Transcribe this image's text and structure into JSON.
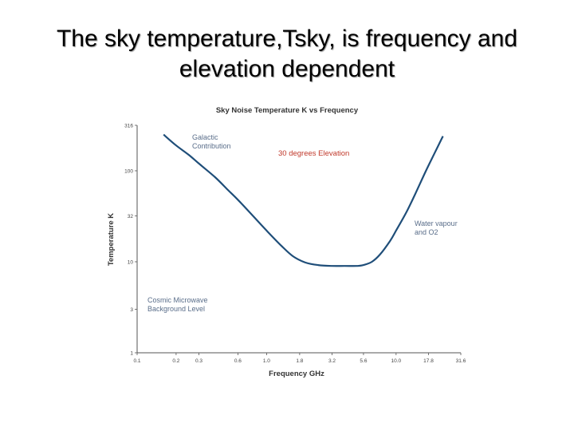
{
  "slide": {
    "title_line1": "The sky temperature,Tsky, is frequency and",
    "title_line2": "elevation dependent"
  },
  "chart_data": {
    "type": "line",
    "title": "Sky Noise Temperature K vs Frequency",
    "xlabel": "Frequency GHz",
    "ylabel": "Temperature K",
    "x_scale": "log",
    "y_scale": "log",
    "xlim": [
      0.1,
      31.6
    ],
    "ylim": [
      1,
      316
    ],
    "x_ticks": [
      "0.1",
      "0.2",
      "0.3",
      "0.6",
      "1.0",
      "1.8",
      "3.2",
      "5.6",
      "10.0",
      "17.8",
      "31.6"
    ],
    "y_ticks": [
      "1",
      "3",
      "10",
      "32",
      "100",
      "316"
    ],
    "grid": false,
    "series": [
      {
        "color": "#1f4e79",
        "x": [
          0.16,
          0.2,
          0.25,
          0.3,
          0.4,
          0.5,
          0.6,
          0.8,
          1.0,
          1.3,
          1.6,
          2.0,
          2.5,
          3.2,
          4.0,
          5.0,
          5.6,
          6.5,
          7.5,
          9.0,
          10.0,
          12.0,
          14.0,
          17.0,
          20.0,
          23.0
        ],
        "y": [
          250,
          190,
          150,
          120,
          85,
          62,
          48,
          31,
          22,
          15,
          11.5,
          9.8,
          9.2,
          9.0,
          9.0,
          9.0,
          9.2,
          10.0,
          12.0,
          17.0,
          22.0,
          35.0,
          55.0,
          100.0,
          160.0,
          240.0
        ]
      }
    ],
    "annotations": {
      "galactic": [
        "Galactic",
        "Contribution"
      ],
      "elevation": "30 degrees Elevation",
      "water": [
        "Water vapour",
        "and O2"
      ],
      "cmb": [
        "Cosmic Microwave",
        "Background Level"
      ]
    },
    "colors": {
      "line": "#1f4e79",
      "axis": "#555555",
      "annotation": "#5a6e8a",
      "elevation": "#c0392b"
    }
  }
}
